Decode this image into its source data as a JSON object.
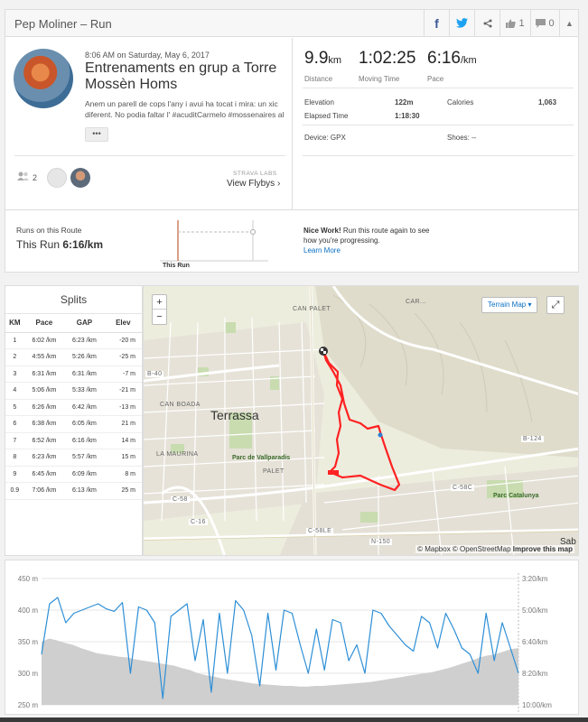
{
  "header": {
    "title": "Pep Moliner – Run",
    "facebook": "f",
    "twitter": "t",
    "kudos_count": "1",
    "comments_count": "0"
  },
  "activity": {
    "datetime": "8:06 AM on Saturday, May 6, 2017",
    "title": "Entrenaments en grup a Torre Mossèn Homs",
    "description": "Anem un parell de cops l'any i avui ha tocat i mira: un xic diferent. No podia faltar l' #acuditCarmelo #mossenaires al",
    "more_label": "•••",
    "athletes_count": "2",
    "flyby_label": "STRAVA LABS",
    "flyby_link": "View Flybys ›"
  },
  "stats": {
    "distance_value": "9.9",
    "distance_unit": "km",
    "distance_label": "Distance",
    "moving_time_value": "1:02:25",
    "moving_time_label": "Moving Time",
    "pace_value": "6:16",
    "pace_unit": "/km",
    "pace_label": "Pace",
    "elevation_label": "Elevation",
    "elevation_value": "122m",
    "calories_label": "Calories",
    "calories_value": "1,063",
    "elapsed_label": "Elapsed Time",
    "elapsed_value": "1:18:30",
    "device_label": "Device: GPX",
    "shoes_label": "Shoes: --"
  },
  "routes": {
    "label": "Runs on this Route",
    "this_run_label": "This Run",
    "this_run_value": "6:16/km",
    "chart_label": "This Run",
    "nice_bold": "Nice Work!",
    "nice_text": " Run this route again to see how you're progressing.",
    "learn_more": "Learn More"
  },
  "splits": {
    "title": "Splits",
    "headers": [
      "KM",
      "Pace",
      "GAP",
      "Elev"
    ],
    "rows": [
      [
        "1",
        "6:02 /km",
        "6:23 /km",
        "-20 m"
      ],
      [
        "2",
        "4:55 /km",
        "5:26 /km",
        "-25 m"
      ],
      [
        "3",
        "6:31 /km",
        "6:31 /km",
        "-7 m"
      ],
      [
        "4",
        "5:06 /km",
        "5:33 /km",
        "-21 m"
      ],
      [
        "5",
        "6:26 /km",
        "6:42 /km",
        "-13 m"
      ],
      [
        "6",
        "6:38 /km",
        "6:05 /km",
        "21 m"
      ],
      [
        "7",
        "6:52 /km",
        "6:16 /km",
        "14 m"
      ],
      [
        "8",
        "6:23 /km",
        "5:57 /km",
        "15 m"
      ],
      [
        "9",
        "6:45 /km",
        "6:09 /km",
        "8 m"
      ],
      [
        "0.9",
        "7:06 /km",
        "6:13 /km",
        "25 m"
      ]
    ]
  },
  "map": {
    "zoom_in": "+",
    "zoom_out": "−",
    "terrain_label": "Terrain Map ▾",
    "fullscreen": "⤢",
    "attribution_a": "© Mapbox © OpenStreetMap ",
    "attribution_b": "Improve this map",
    "town": "Terrassa",
    "park1": "Parc de Vallparadis",
    "park2": "Parc Catalunya",
    "place_can_boada": "CAN BOADA",
    "place_la_maurina": "LA MAURINA",
    "place_pal": "PALET",
    "place_can_pal": "CAN PALET",
    "place_cart": "CAR...",
    "road_b40": "B-40",
    "road_c58": "C-58",
    "road_c16": "C-16",
    "road_c58c": "C-58C",
    "road_b124": "B-124",
    "road_c58b": "C-58LE",
    "road_n150": "N-150",
    "sab": "Sab"
  },
  "elevation_chart": {
    "left_ticks": [
      "450 m",
      "400 m",
      "350 m",
      "300 m",
      "250 m"
    ],
    "right_ticks": [
      "3:20/km",
      "5:00/km",
      "6:40/km",
      "8:20/km",
      "10:00/km"
    ],
    "elevation": [
      350,
      355,
      352,
      348,
      345,
      340,
      336,
      332,
      330,
      328,
      326,
      325,
      322,
      320,
      318,
      316,
      314,
      312,
      308,
      305,
      300,
      297,
      295,
      292,
      290,
      288,
      286,
      284,
      283,
      282,
      281,
      280,
      280,
      279,
      279,
      280,
      280,
      281,
      282,
      283,
      284,
      285,
      286,
      288,
      290,
      292,
      294,
      296,
      298,
      300,
      302,
      305,
      308,
      312,
      316,
      320,
      325,
      328,
      330,
      334,
      338,
      340
    ],
    "pace": [
      330,
      410,
      420,
      380,
      395,
      400,
      405,
      410,
      402,
      398,
      412,
      300,
      405,
      400,
      380,
      260,
      390,
      400,
      410,
      320,
      385,
      270,
      395,
      300,
      415,
      400,
      360,
      280,
      395,
      305,
      400,
      395,
      345,
      300,
      370,
      305,
      385,
      380,
      320,
      345,
      300,
      400,
      395,
      375,
      360,
      345,
      335,
      390,
      380,
      340,
      395,
      370,
      340,
      330,
      300,
      395,
      320,
      380,
      340,
      300
    ]
  },
  "colors": {
    "accent": "#0a6fc2",
    "route": "#ff2222",
    "pace_line": "#2e8fd6",
    "elevation_fill": "#cfcfcf"
  }
}
